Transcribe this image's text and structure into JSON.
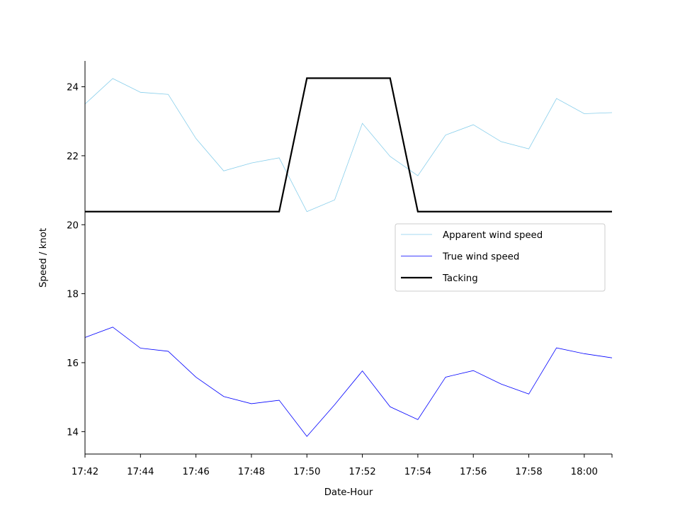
{
  "chart_data": {
    "type": "line",
    "xlabel": "Date-Hour",
    "ylabel": "Speed / knot",
    "x": [
      "17:42",
      "17:43",
      "17:44",
      "17:45",
      "17:46",
      "17:47",
      "17:48",
      "17:49",
      "17:50",
      "17:51",
      "17:52",
      "17:53",
      "17:54",
      "17:55",
      "17:56",
      "17:57",
      "17:58",
      "17:59",
      "18:00",
      "18:01"
    ],
    "x_ticks": [
      "17:42",
      "17:44",
      "17:46",
      "17:48",
      "17:50",
      "17:52",
      "17:54",
      "17:56",
      "17:58",
      "18:00"
    ],
    "xlim": [
      "17:42",
      "18:01"
    ],
    "y_ticks": [
      14,
      16,
      18,
      20,
      22,
      24
    ],
    "ylim": [
      13.35,
      24.75
    ],
    "grid": false,
    "legend_position": "center-right",
    "series": [
      {
        "name": "Apparent wind speed",
        "color": "#87ceeb",
        "values": [
          23.5,
          24.24,
          23.84,
          23.78,
          22.5,
          21.56,
          21.79,
          21.94,
          20.38,
          20.72,
          22.94,
          21.98,
          21.42,
          22.6,
          22.9,
          22.41,
          22.2,
          23.66,
          23.22,
          23.25
        ]
      },
      {
        "name": "True wind speed",
        "color": "#0000ff",
        "values": [
          16.73,
          17.03,
          16.42,
          16.33,
          15.58,
          15.02,
          14.81,
          14.91,
          13.86,
          14.78,
          15.76,
          14.72,
          14.35,
          15.58,
          15.77,
          15.38,
          15.09,
          16.43,
          16.26,
          16.14
        ]
      },
      {
        "name": "Tacking",
        "color": "#000000",
        "values": [
          20.38,
          20.38,
          20.38,
          20.38,
          20.38,
          20.38,
          20.38,
          20.38,
          24.25,
          24.25,
          24.25,
          24.25,
          20.38,
          20.38,
          20.38,
          20.38,
          20.38,
          20.38,
          20.38,
          20.38
        ]
      }
    ]
  }
}
